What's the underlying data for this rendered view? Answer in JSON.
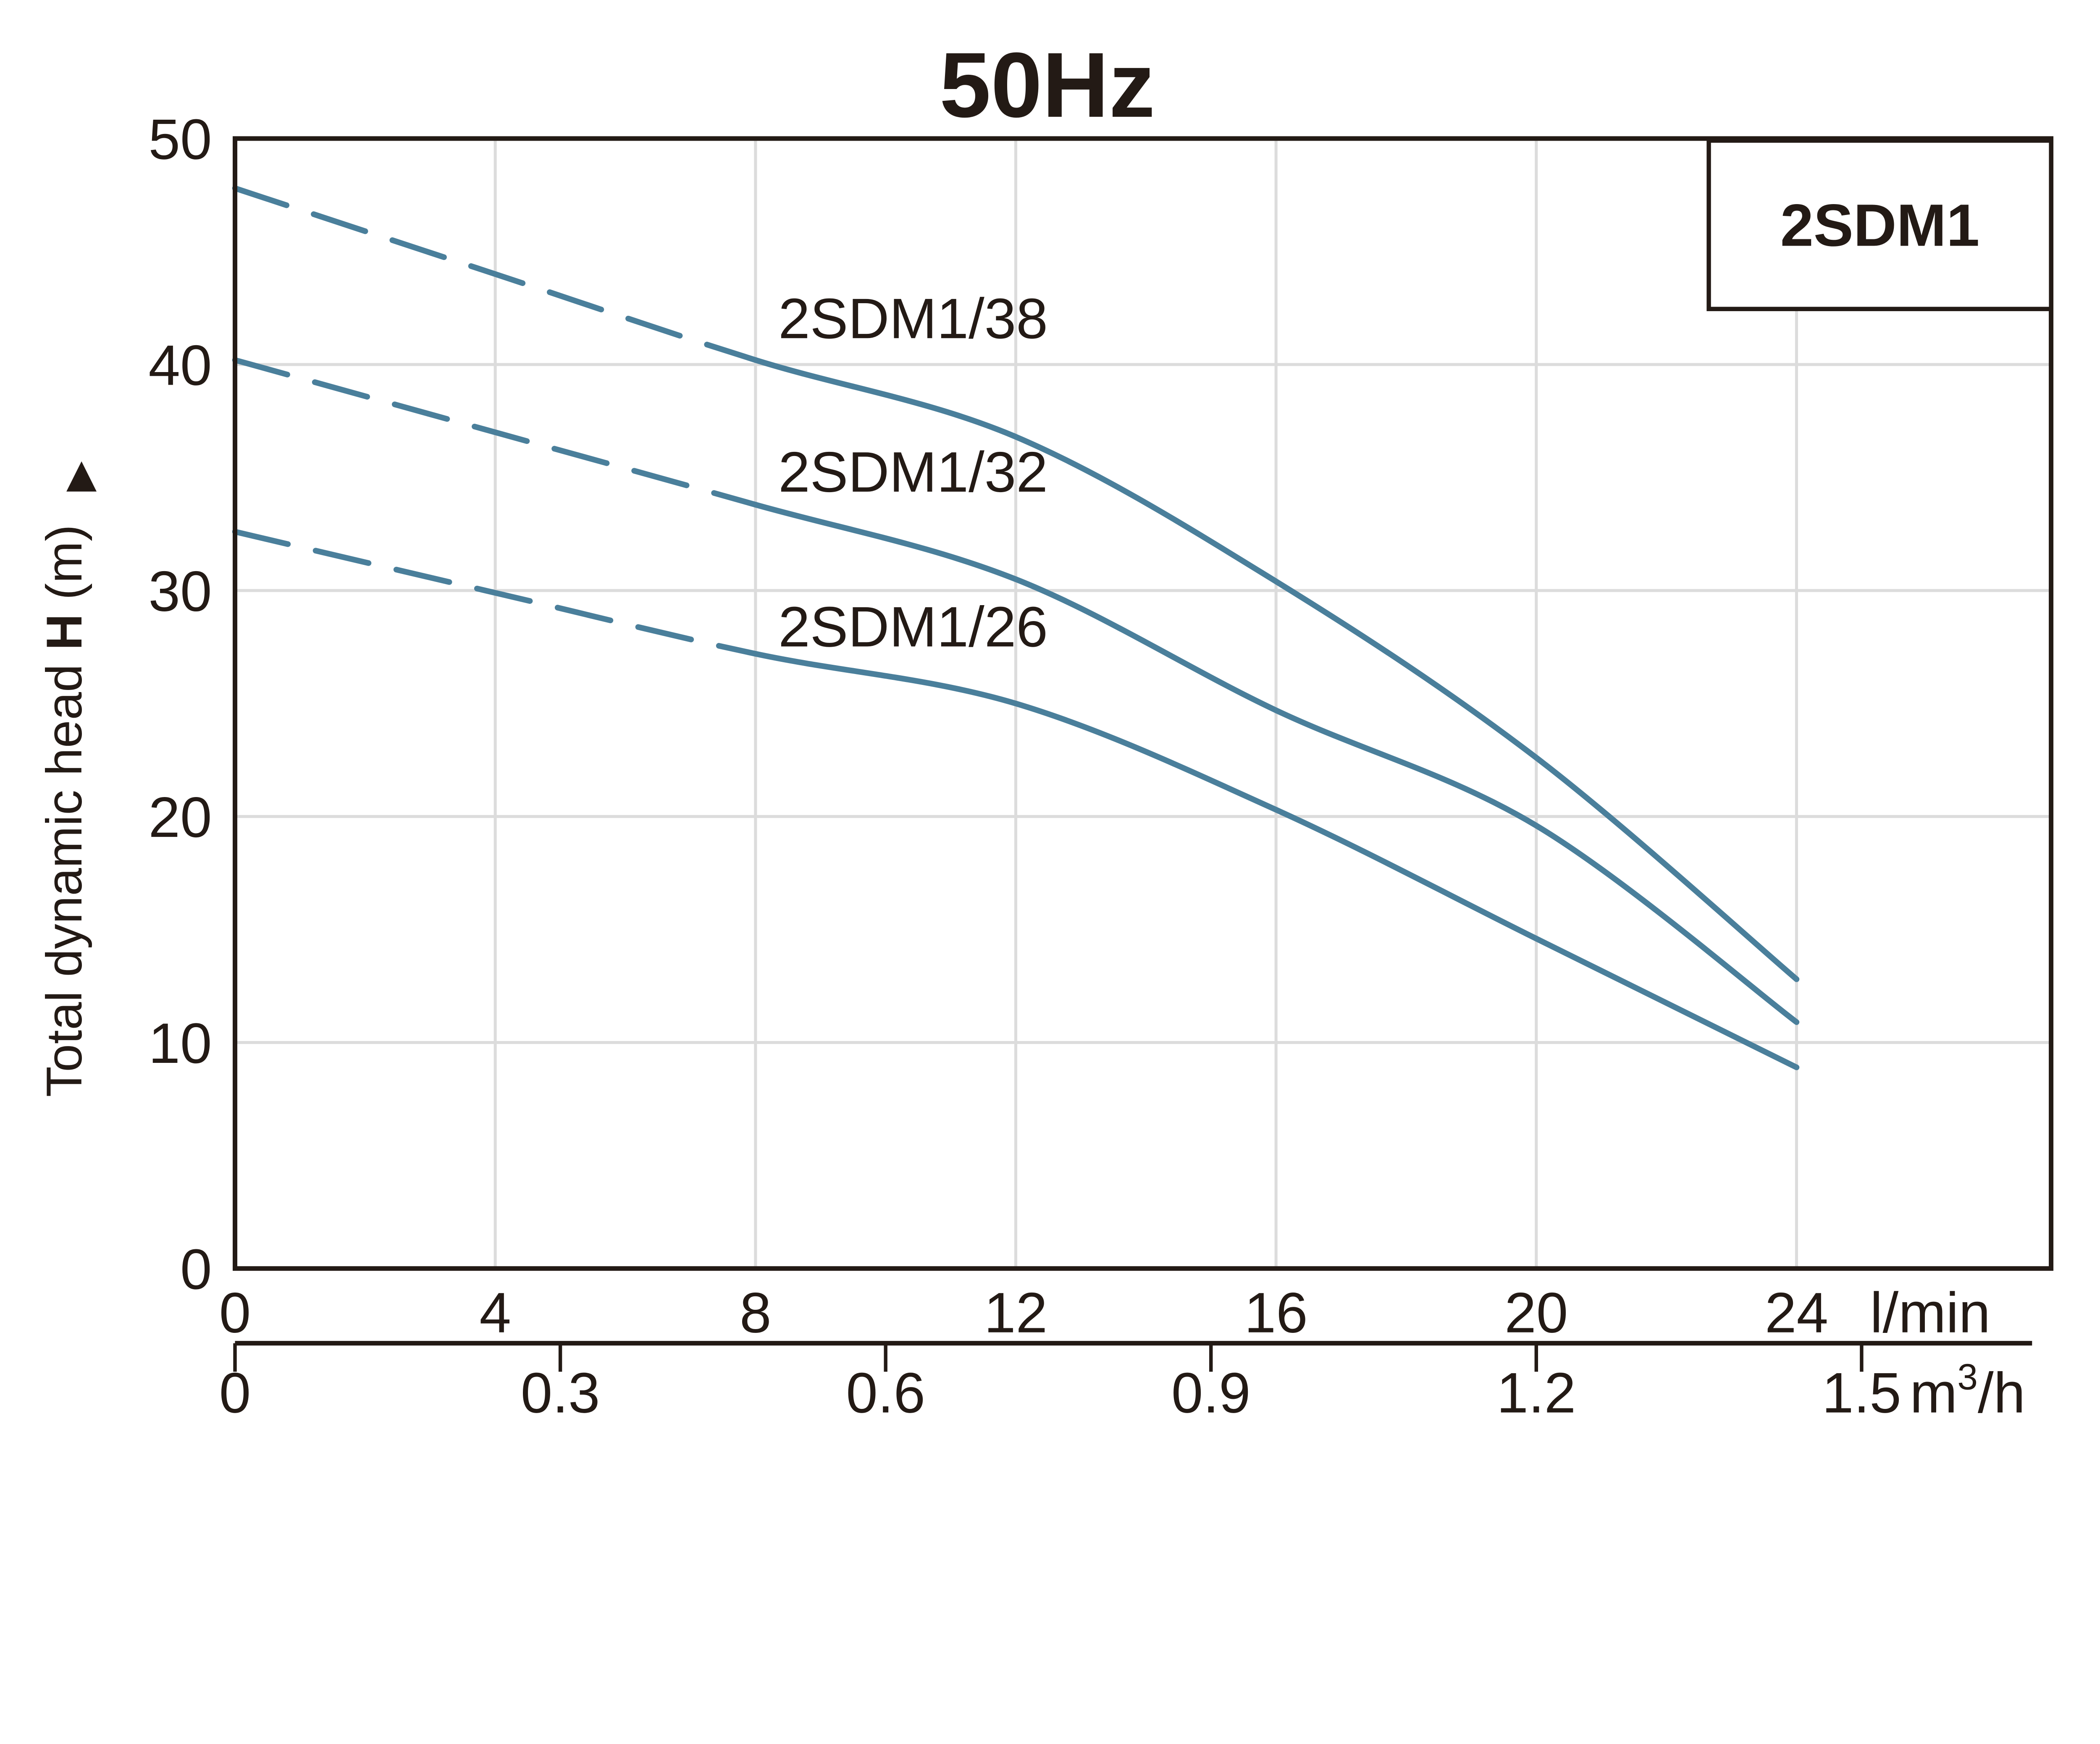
{
  "title": {
    "text": "50Hz",
    "color": "#4a7f9b"
  },
  "legend": {
    "label": "2SDM1",
    "color": "#4a7f9b"
  },
  "y_axis": {
    "label_prefix": "Total dynamic head ",
    "label_emph": "H",
    "label_suffix": " (m)",
    "arrow": "▲",
    "ticks": [
      "50",
      "40",
      "30",
      "20",
      "10",
      "0"
    ]
  },
  "x_axis_lmin": {
    "ticks": [
      "0",
      "4",
      "8",
      "12",
      "16",
      "20",
      "24"
    ],
    "unit": "l/min"
  },
  "x_axis_m3h": {
    "ticks": [
      "0",
      "0.3",
      "0.6",
      "0.9",
      "1.2",
      "1.5"
    ],
    "unit_base": "m",
    "unit_sup": "3",
    "unit_rest": "/h"
  },
  "chart_data": {
    "type": "line",
    "title": "50Hz",
    "ylabel": "Total dynamic head H (m)",
    "xlabel_primary": "l/min",
    "xlabel_secondary": "m3/h",
    "ylim": [
      0,
      50
    ],
    "xlim_lmin": [
      0,
      28
    ],
    "y_gridlines": [
      10,
      20,
      30,
      40
    ],
    "x_gridlines_lmin": [
      4,
      8,
      12,
      16,
      20,
      24
    ],
    "x_ticks_lmin": [
      0,
      4,
      8,
      12,
      16,
      20,
      24
    ],
    "x_ticks_m3h": [
      0,
      0.3,
      0.6,
      0.9,
      1.2,
      1.5
    ],
    "m3h_to_lmin": 16.6667,
    "grid": true,
    "legend_position": "top-right",
    "curve_color": "#4a7f9b",
    "x_lmin": [
      0,
      4,
      8,
      12,
      16,
      20,
      24
    ],
    "series": [
      {
        "name": "2SDM1/38",
        "values": [
          47.8,
          44.0,
          40.2,
          36.8,
          30.4,
          22.6,
          12.8
        ],
        "dashed_until_lmin": 8
      },
      {
        "name": "2SDM1/32",
        "values": [
          40.2,
          37.0,
          33.8,
          30.5,
          24.7,
          19.6,
          10.9
        ],
        "dashed_until_lmin": 8
      },
      {
        "name": "2SDM1/26",
        "values": [
          32.6,
          29.9,
          27.2,
          25.0,
          20.3,
          14.6,
          8.9
        ],
        "dashed_until_lmin": 8
      }
    ]
  }
}
